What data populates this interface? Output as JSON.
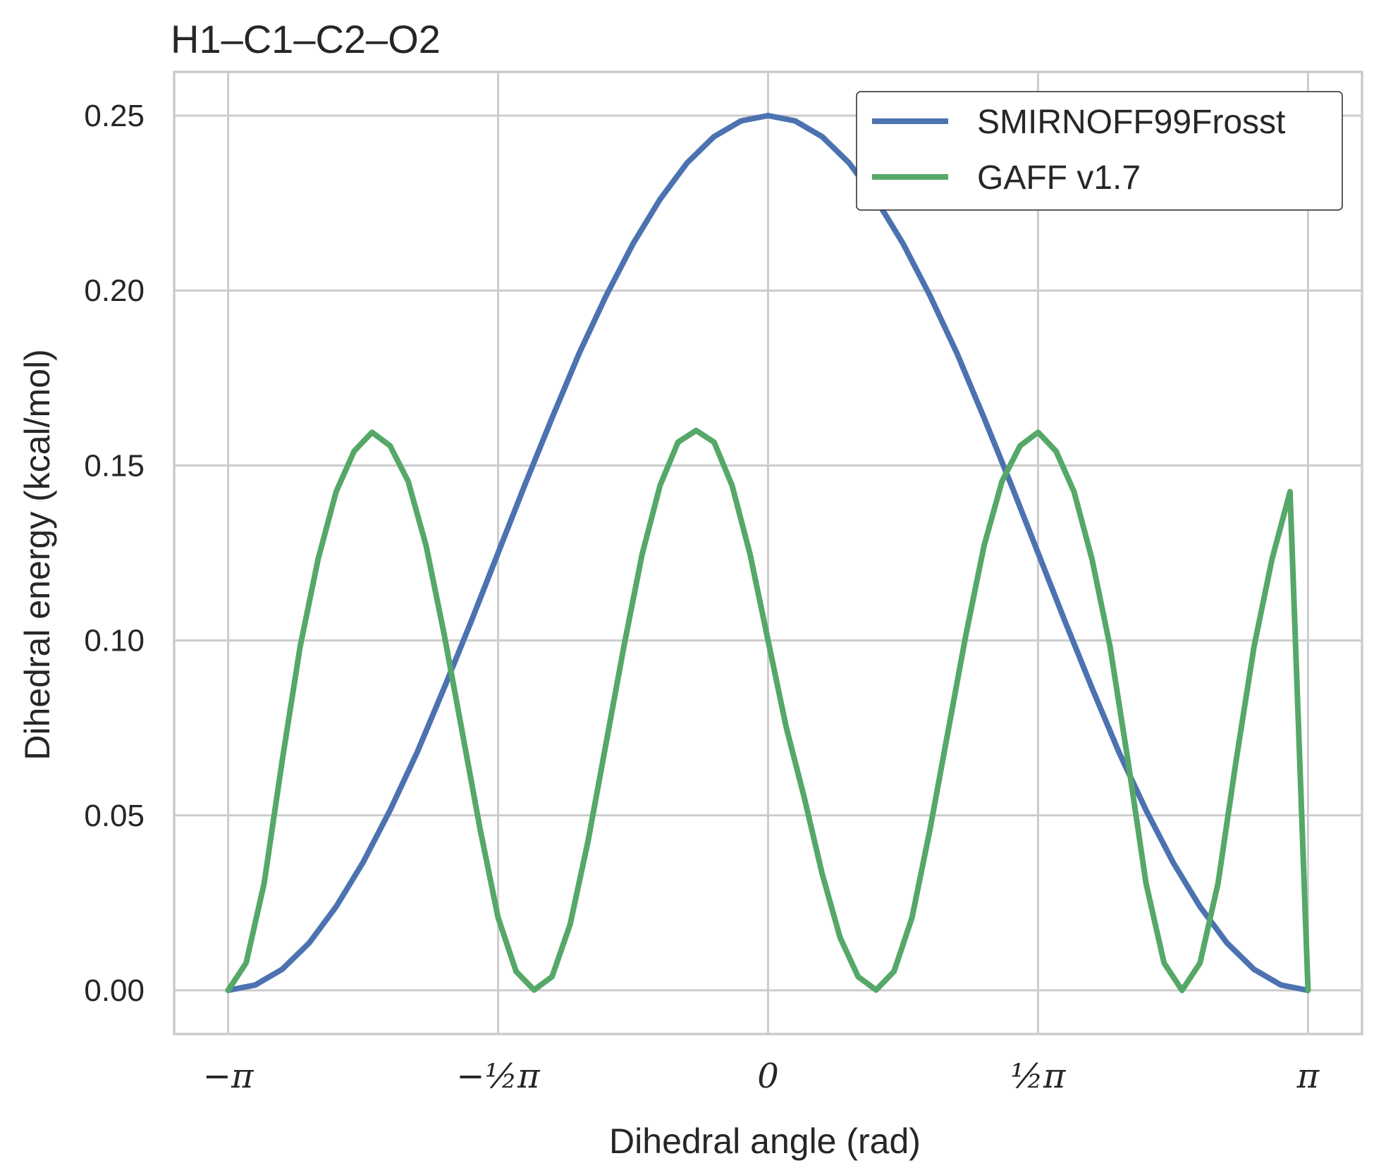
{
  "chart_data": {
    "type": "line",
    "title": "H1–C1–C2–O2",
    "xlabel": "Dihedral angle (rad)",
    "ylabel": "Dihedral energy (kcal/mol)",
    "xlim": [
      -3.4558,
      3.4558
    ],
    "ylim": [
      -0.0125,
      0.2625
    ],
    "grid": true,
    "legend_position": "top-right",
    "x_ticks": [
      {
        "value": -3.14159,
        "label": "−π"
      },
      {
        "value": -1.5708,
        "label": "−½π"
      },
      {
        "value": 0,
        "label": "0"
      },
      {
        "value": 1.5708,
        "label": "½π"
      },
      {
        "value": 3.14159,
        "label": "π"
      }
    ],
    "y_ticks": [
      {
        "value": 0.0,
        "label": "0.00"
      },
      {
        "value": 0.05,
        "label": "0.05"
      },
      {
        "value": 0.1,
        "label": "0.10"
      },
      {
        "value": 0.15,
        "label": "0.15"
      },
      {
        "value": 0.2,
        "label": "0.20"
      },
      {
        "value": 0.25,
        "label": "0.25"
      }
    ],
    "series": [
      {
        "name": "SMIRNOFF99Frosst",
        "color": "#4c72b0",
        "x": [
          -3.1416,
          -2.9845,
          -2.8274,
          -2.6704,
          -2.5133,
          -2.3562,
          -2.1991,
          -2.042,
          -1.885,
          -1.7279,
          -1.5708,
          -1.4137,
          -1.2566,
          -1.0996,
          -0.9425,
          -0.7854,
          -0.6283,
          -0.4712,
          -0.3142,
          -0.1571,
          0.0,
          0.1571,
          0.3142,
          0.4712,
          0.6283,
          0.7854,
          0.9425,
          1.0996,
          1.2566,
          1.4137,
          1.5708,
          1.7279,
          1.885,
          2.042,
          2.1991,
          2.3562,
          2.5133,
          2.6704,
          2.8274,
          2.9845,
          3.1416
        ],
        "y": [
          0.0,
          0.0015,
          0.006,
          0.0135,
          0.0239,
          0.0366,
          0.0515,
          0.068,
          0.0864,
          0.1054,
          0.125,
          0.1446,
          0.1636,
          0.182,
          0.1985,
          0.2134,
          0.2261,
          0.2365,
          0.244,
          0.2485,
          0.25,
          0.2485,
          0.244,
          0.2365,
          0.2261,
          0.2134,
          0.1985,
          0.182,
          0.1636,
          0.1446,
          0.125,
          0.1054,
          0.0864,
          0.068,
          0.0515,
          0.0366,
          0.0239,
          0.0135,
          0.006,
          0.0015,
          0.0
        ]
      },
      {
        "name": "GAFF v1.7",
        "color": "#55a868",
        "x": [
          -3.1416,
          -3.0369,
          -2.9322,
          -2.8274,
          -2.7227,
          -2.618,
          -2.5133,
          -2.4086,
          -2.3038,
          -2.1991,
          -2.0944,
          -1.9897,
          -1.885,
          -1.7802,
          -1.6755,
          -1.5708,
          -1.4661,
          -1.3614,
          -1.2566,
          -1.1519,
          -1.0472,
          -0.9425,
          -0.8378,
          -0.733,
          -0.6283,
          -0.5236,
          -0.4189,
          -0.3142,
          -0.2094,
          -0.1047,
          0.0,
          0.1047,
          0.2094,
          0.3142,
          0.4189,
          0.5236,
          0.6283,
          0.733,
          0.8378,
          0.9425,
          1.0472,
          1.1519,
          1.2566,
          1.3614,
          1.4661,
          1.5708,
          1.6755,
          1.7802,
          1.885,
          1.9897,
          2.0944,
          2.1991,
          2.3038,
          2.4086,
          2.5133,
          2.618,
          2.7227,
          2.8274,
          2.9322,
          3.0369,
          3.1416
        ],
        "y": [
          0.0,
          0.0078,
          0.0306,
          0.0655,
          0.0982,
          0.1232,
          0.1425,
          0.1541,
          0.1595,
          0.1556,
          0.1455,
          0.1271,
          0.1018,
          0.074,
          0.0461,
          0.0208,
          0.0054,
          0.0001,
          0.0039,
          0.0188,
          0.0427,
          0.0706,
          0.0986,
          0.1246,
          0.1443,
          0.1567,
          0.16,
          0.1567,
          0.1443,
          0.1246,
          0.1,
          0.0754,
          0.0553,
          0.0334,
          0.0151,
          0.0039,
          0.0001,
          0.0054,
          0.0208,
          0.0461,
          0.074,
          0.1018,
          0.1271,
          0.1455,
          0.1556,
          0.1595,
          0.1541,
          0.1425,
          0.1232,
          0.0982,
          0.0655,
          0.0306,
          0.0078,
          0.0,
          0.0078,
          0.0306,
          0.0655,
          0.0982,
          0.1232,
          0.1425,
          0.0
        ]
      }
    ]
  }
}
